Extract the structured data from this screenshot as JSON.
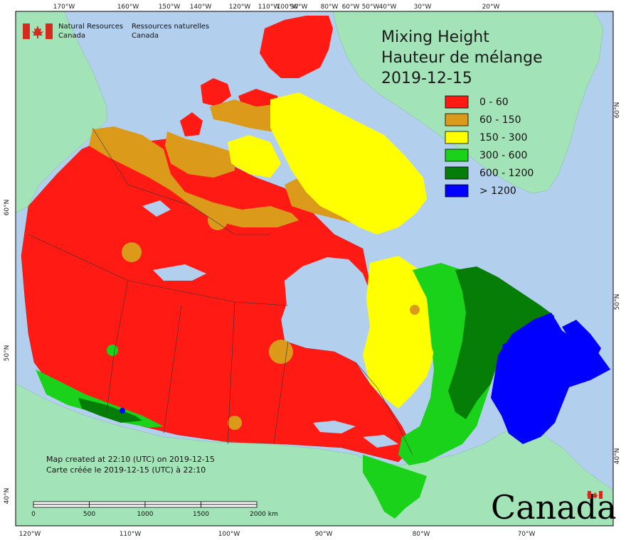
{
  "map": {
    "title_en": "Mixing Height",
    "title_fr": "Hauteur de mélange",
    "date": "2019-12-15",
    "org_en_line1": "Natural Resources",
    "org_en_line2": "Canada",
    "org_fr_line1": "Ressources naturelles",
    "org_fr_line2": "Canada",
    "created_en": "Map created at 22:10 (UTC) on 2019-12-15",
    "created_fr": "Carte créée le 2019-12-15 (UTC) à 22:10",
    "wordmark": "Canada",
    "colors": {
      "ocean": "#b3cfee",
      "land_other": "#a3e3b8",
      "c0": "#ff1b14",
      "c1": "#db9a1a",
      "c2": "#ffff00",
      "c3": "#19d219",
      "c4": "#067d06",
      "c5": "#0000ff"
    },
    "legend": [
      {
        "label": "0 - 60",
        "color": "#ff1b14"
      },
      {
        "label": "60 - 150",
        "color": "#db9a1a"
      },
      {
        "label": "150 - 300",
        "color": "#ffff00"
      },
      {
        "label": "300 - 600",
        "color": "#19d219"
      },
      {
        "label": "600 - 1200",
        "color": "#067d06"
      },
      {
        "label": "> 1200",
        "color": "#0000ff"
      }
    ],
    "top_ticks": [
      "170°W",
      "160°W",
      "150°W",
      "140°W",
      "120°W",
      "110°W",
      "100°W",
      "90°W",
      "80°W",
      "60°W",
      "50°W",
      "40°W",
      "30°W",
      "20°W"
    ],
    "bottom_ticks": [
      "120°W",
      "110°W",
      "100°W",
      "90°W",
      "80°W",
      "70°W"
    ],
    "left_ticks": [
      "60°N",
      "50°N",
      "40°N"
    ],
    "right_ticks": [
      "60°N",
      "50°N",
      "40°N"
    ],
    "scale": {
      "labels": [
        "0",
        "500",
        "1000",
        "1500",
        "2000 km"
      ]
    }
  }
}
